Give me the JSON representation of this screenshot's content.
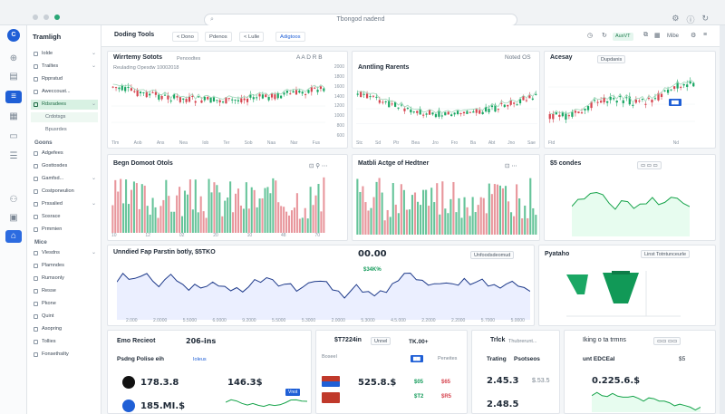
{
  "window": {
    "address": "Tbongod nadend"
  },
  "rail": {
    "logo": "C"
  },
  "sidebar": {
    "title": "Tramligh",
    "items": [
      {
        "label": "Iolde"
      },
      {
        "label": "Trailtes"
      },
      {
        "label": "Rppratud"
      },
      {
        "label": "Aweccoust..."
      },
      {
        "label": "Rdsradees"
      },
      {
        "label": "Crdotsgs"
      },
      {
        "label": "Bpusrdes"
      }
    ],
    "section1": "Goons",
    "items2": [
      {
        "label": "Adgefees"
      },
      {
        "label": "Gosttosdes"
      },
      {
        "label": "Gamfsd..."
      },
      {
        "label": "Costponeulion"
      },
      {
        "label": "Prssalied"
      },
      {
        "label": "Sosrace"
      },
      {
        "label": "Prmmien"
      }
    ],
    "section2": "Mice",
    "items3": [
      {
        "label": "Vlesdns"
      },
      {
        "label": "Plamndes"
      },
      {
        "label": "Rumsonly"
      },
      {
        "label": "Resse"
      },
      {
        "label": "Pkone"
      },
      {
        "label": "Quint"
      },
      {
        "label": "Asopring"
      },
      {
        "label": "Tollies"
      },
      {
        "label": "Fonsethsilty"
      }
    ]
  },
  "toolbar": {
    "title": "Doding Tools",
    "pill1": "< Dono",
    "pill2": "Pdenos",
    "pill3": "< Lulle",
    "pill4": "Adigtoos",
    "green": "AuxVT",
    "right": "Mibe"
  },
  "panels": {
    "p1": {
      "title": "Wirrtemy Sotots",
      "sub": "Reulading Opesdw 10002018",
      "tag": "Penoodtes",
      "ctrl": "A A D R B"
    },
    "p2": {
      "title": "Anntling Rarents",
      "ctrl": "Noted OS"
    },
    "p3": {
      "title": "Acesay",
      "btn": "Dupdanis"
    },
    "p4": {
      "title": "Begn Domoot Otols"
    },
    "p5": {
      "title": "Matbli Actge of Hedtner"
    },
    "p6": {
      "title": "$5 condes"
    },
    "p7": {
      "title": "Unndied Fap Parstin botly, $5TKO",
      "val": "00.00",
      "chg": "$34K%",
      "tab": "Unfoodsdeomud"
    },
    "p8": {
      "title": "Pyataho",
      "tab": "Linst Totntunceurle"
    },
    "p9": {
      "title": "Emo Recieot",
      "val": "206-ins",
      "sub": "Psdng Polise eih",
      "tag": "Ioleus",
      "n1": "178.3.8",
      "n2": "185.MI.$",
      "n3": "146.3$",
      "tagb": "Vnot"
    },
    "p10": {
      "title": "$T7224in",
      "tab": "Unnel",
      "right": "TK.00+",
      "col1": "Boseel",
      "col2": "Peneites",
      "n1": "525.8.$",
      "c1": "$05",
      "c2": "$65",
      "c3": "$T2",
      "c4": "$R5"
    },
    "p11": {
      "title": "Trlck",
      "sub": "Thubrerunt...",
      "name": "Trating",
      "name2": "Psotseos",
      "n1": "2.45.3",
      "n2": "2.48.5",
      "n3": "$.53.5"
    },
    "p12": {
      "title": "Iking o ta trmns",
      "sub": "unt EDCEal",
      "n1": "0.225.6.$",
      "r": "$5"
    }
  },
  "chart_data": [
    {
      "type": "candlestick",
      "title": "Wirrtemy Sotots",
      "x_ticks": [
        "Tlm",
        "Aob",
        "Ans",
        "Nea",
        "Iob",
        "Ter",
        "Sob",
        "Naa",
        "Nar",
        "Fus"
      ],
      "y_ticks": [
        "2000",
        "1800",
        "1600",
        "1400",
        "1200",
        "1000",
        "800",
        "600"
      ]
    },
    {
      "type": "candlestick",
      "title": "Anntling Rarents",
      "x_ticks": [
        "Stc",
        "Sd",
        "Ptr",
        "Bea",
        "Jro",
        "Fro",
        "Ba",
        "Abt",
        "Jno",
        "Sae"
      ]
    },
    {
      "type": "candlestick",
      "title": "Acesay",
      "x_ticks": [
        "Ftd",
        "Nd"
      ]
    },
    {
      "type": "bar",
      "title": "Begn Domoot Otols",
      "x_ticks": [
        "10",
        "12",
        "02",
        "20",
        "10",
        "48",
        "70"
      ]
    },
    {
      "type": "bar",
      "title": "Matbli Actge of Hedtner"
    },
    {
      "type": "line",
      "title": "Unndied Fap Parstin botly, $5TKO",
      "x_ticks": [
        "2.000",
        "2.0000",
        "5.5000",
        "6.0000",
        "9.2000",
        "5.5000",
        "5.3000",
        "2.0000",
        "5.3000",
        "4.5.000",
        "2.2000",
        "2.2000",
        "5.7000",
        "5.0000"
      ]
    },
    {
      "type": "pie",
      "title": "Pyataho"
    }
  ]
}
